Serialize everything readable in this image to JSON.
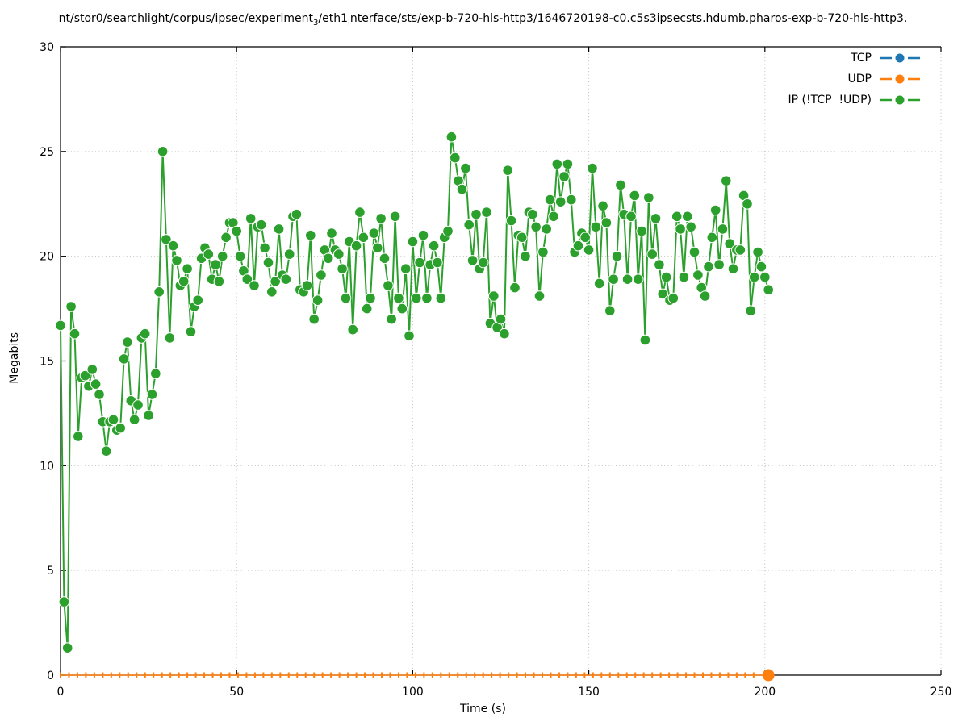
{
  "title": {
    "parts": [
      {
        "t": "nt/stor0/searchlight/corpus/ipsec/experiment"
      },
      {
        "sub": "3"
      },
      {
        "t": "/eth1"
      },
      {
        "sub": "i"
      },
      {
        "t": "nterface/sts/exp-b-720-hls-http3/1646720198-c0.c5s3ipsecsts.hdumb.pharos-exp-b-720-hls-http3."
      }
    ]
  },
  "chart_data": {
    "type": "line",
    "title": "nt/stor0/searchlight/corpus/ipsec/experiment₃/eth1ᵢnterface/sts/exp-b-720-hls-http3/1646720198-c0.c5s3ipsecsts.hdumb.pharos-exp-b-720-hls-http3.",
    "xlabel": "Time (s)",
    "ylabel": "Megabits",
    "xlim": [
      0,
      250
    ],
    "ylim": [
      0,
      30
    ],
    "xticks": [
      0,
      50,
      100,
      150,
      200,
      250
    ],
    "yticks": [
      0,
      5,
      10,
      15,
      20,
      25,
      30
    ],
    "grid": true,
    "legend_position": "top-right-inside",
    "series": [
      {
        "name": "TCP",
        "color": "#1f77b4",
        "style": "linespoints",
        "values": []
      },
      {
        "name": "UDP",
        "color": "#ff7f0e",
        "style": "flat-zero",
        "value": 0,
        "x_start": 0,
        "x_end": 201,
        "marker_step": 2.4
      },
      {
        "name": "IP (!TCP  !UDP)",
        "color": "#2ca02c",
        "style": "linespoints",
        "x_start": 0,
        "x_step": 1,
        "values": [
          16.7,
          3.5,
          1.3,
          17.6,
          16.3,
          11.4,
          14.2,
          14.3,
          13.8,
          14.6,
          13.9,
          13.4,
          12.1,
          10.7,
          12.1,
          12.2,
          11.7,
          11.8,
          15.1,
          15.9,
          13.1,
          12.2,
          12.9,
          16.1,
          16.3,
          12.4,
          13.4,
          14.4,
          18.3,
          25.0,
          20.8,
          16.1,
          20.5,
          19.8,
          18.6,
          18.8,
          19.4,
          16.4,
          17.6,
          17.9,
          19.9,
          20.4,
          20.1,
          18.9,
          19.6,
          18.8,
          20.0,
          20.9,
          21.6,
          21.6,
          21.2,
          20.0,
          19.3,
          18.9,
          21.8,
          18.6,
          21.4,
          21.5,
          20.4,
          19.7,
          18.3,
          18.8,
          21.3,
          19.1,
          18.9,
          20.1,
          21.9,
          22.0,
          18.4,
          18.3,
          18.6,
          21.0,
          17.0,
          17.9,
          19.1,
          20.3,
          19.9,
          21.1,
          20.3,
          20.1,
          19.4,
          18.0,
          20.7,
          16.5,
          20.5,
          22.1,
          20.9,
          17.5,
          18.0,
          21.1,
          20.4,
          21.8,
          19.9,
          18.6,
          17.0,
          21.9,
          18.0,
          17.5,
          19.4,
          16.2,
          20.7,
          18.0,
          19.7,
          21.0,
          18.0,
          19.6,
          20.5,
          19.7,
          18.0,
          20.9,
          21.2,
          25.7,
          24.7,
          23.6,
          23.2,
          24.2,
          21.5,
          19.8,
          22.0,
          19.4,
          19.7,
          22.1,
          16.8,
          18.1,
          16.6,
          17.0,
          16.3,
          24.1,
          21.7,
          18.5,
          21.0,
          20.9,
          20.0,
          22.1,
          22.0,
          21.4,
          18.1,
          20.2,
          21.3,
          22.7,
          21.9,
          24.4,
          22.6,
          23.8,
          24.4,
          22.7,
          20.2,
          20.5,
          21.1,
          20.9,
          20.3,
          24.2,
          21.4,
          18.7,
          22.4,
          21.6,
          17.4,
          18.9,
          20.0,
          23.4,
          22.0,
          18.9,
          21.9,
          22.9,
          18.9,
          21.2,
          16.0,
          22.8,
          20.1,
          21.8,
          19.6,
          18.2,
          19.0,
          17.9,
          18.0,
          21.9,
          21.3,
          19.0,
          21.9,
          21.4,
          20.2,
          19.1,
          18.5,
          18.1,
          19.5,
          20.9,
          22.2,
          19.6,
          21.3,
          23.6,
          20.6,
          19.4,
          20.3,
          20.3,
          22.9,
          22.5,
          17.4,
          19.0,
          20.2,
          19.5,
          19.0,
          18.4
        ]
      }
    ]
  }
}
